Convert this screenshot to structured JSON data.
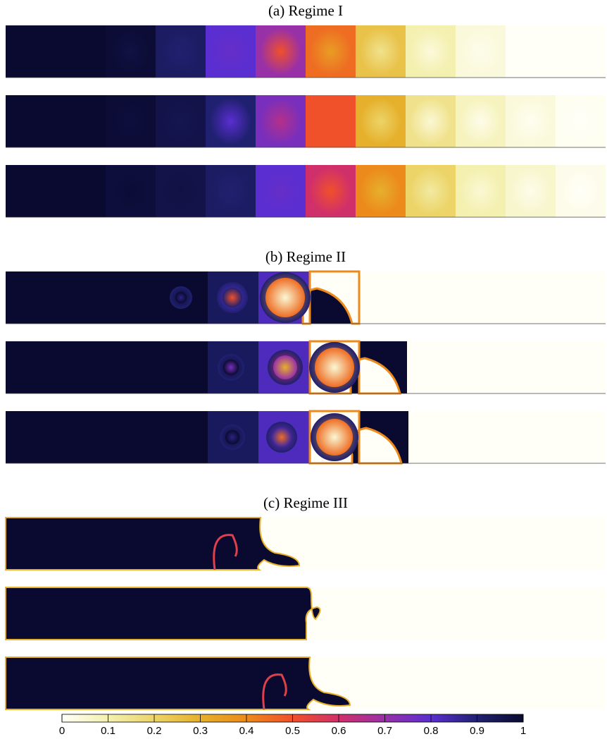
{
  "panels": [
    {
      "title": "(a) Regime I"
    },
    {
      "title": "(b) Regime II"
    },
    {
      "title": "(c) Regime III"
    }
  ],
  "colorbar": {
    "lim": [
      0,
      1
    ],
    "ticks": [
      0,
      0.1,
      0.2,
      0.3,
      0.4,
      0.5,
      0.6,
      0.7,
      0.8,
      0.9,
      1
    ],
    "colors": [
      "#fffff8",
      "#f4f0b0",
      "#ecd468",
      "#e6b02c",
      "#ec8a1c",
      "#f0502a",
      "#d0306a",
      "#9830a8",
      "#5a2ed0",
      "#202070",
      "#0a0a30"
    ]
  }
}
